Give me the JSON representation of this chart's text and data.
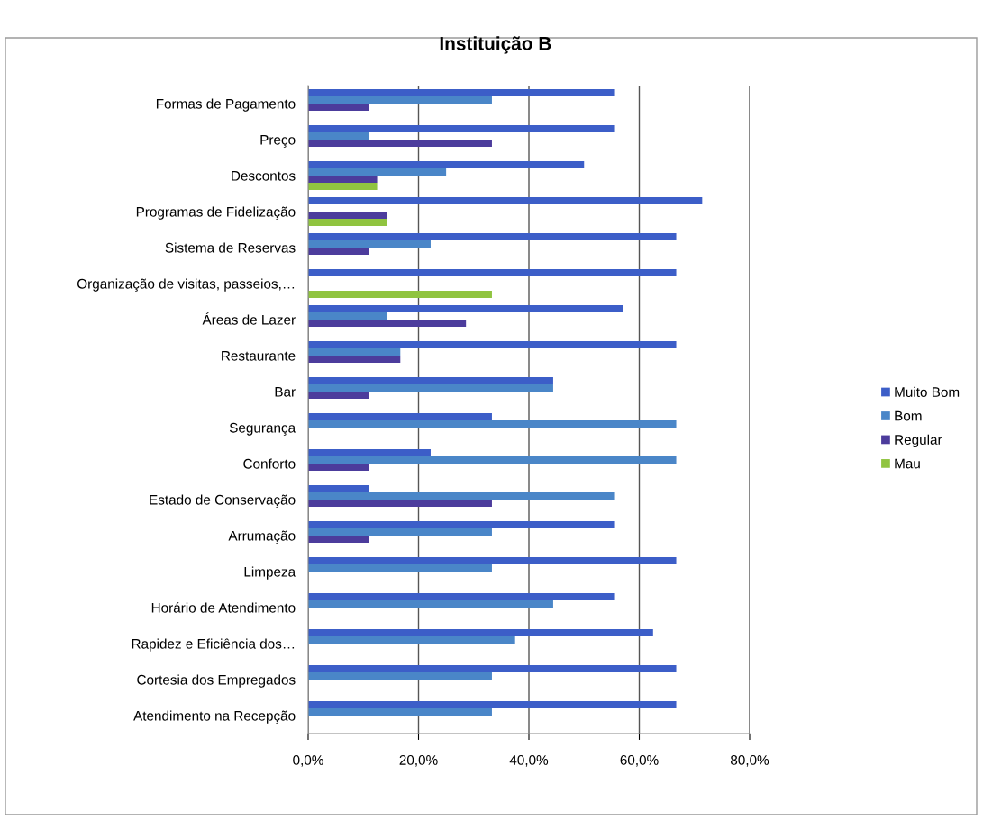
{
  "chart_data": {
    "type": "bar",
    "orientation": "horizontal",
    "title": "Instituição B",
    "categories": [
      "Formas de Pagamento",
      "Preço",
      "Descontos",
      "Programas de Fidelização",
      "Sistema de Reservas",
      "Organização de visitas, passeios,…",
      "Áreas de Lazer",
      "Restaurante",
      "Bar",
      "Segurança",
      "Conforto",
      "Estado de Conservação",
      "Arrumação",
      "Limpeza",
      "Horário de Atendimento",
      "Rapidez e Eficiência dos…",
      "Cortesia dos Empregados",
      "Atendimento na Recepção"
    ],
    "series": [
      {
        "name": "Muito Bom",
        "color": "#3c5ec8",
        "values": [
          55.6,
          55.6,
          50.0,
          71.4,
          66.7,
          66.7,
          57.1,
          66.7,
          44.4,
          33.3,
          22.2,
          11.1,
          55.6,
          66.7,
          55.6,
          62.5,
          66.7,
          66.7
        ]
      },
      {
        "name": "Bom",
        "color": "#4a86c8",
        "values": [
          33.3,
          11.1,
          25.0,
          null,
          22.2,
          null,
          14.3,
          16.7,
          44.4,
          66.7,
          66.7,
          55.6,
          33.3,
          33.3,
          44.4,
          37.5,
          33.3,
          33.3
        ]
      },
      {
        "name": "Regular",
        "color": "#4c3c9c",
        "values": [
          11.1,
          33.3,
          12.5,
          14.3,
          11.1,
          null,
          28.6,
          16.7,
          11.1,
          null,
          11.1,
          33.3,
          11.1,
          null,
          null,
          null,
          null,
          null
        ]
      },
      {
        "name": "Mau",
        "color": "#90c440",
        "values": [
          null,
          null,
          12.5,
          14.3,
          null,
          33.3,
          null,
          null,
          null,
          null,
          null,
          null,
          null,
          null,
          null,
          null,
          null,
          null
        ]
      }
    ],
    "xlim": [
      0,
      80
    ],
    "xticks": [
      {
        "value": 0,
        "label": "0,0%"
      },
      {
        "value": 20,
        "label": "20,0%"
      },
      {
        "value": 40,
        "label": "40,0%"
      },
      {
        "value": 60,
        "label": "60,0%"
      },
      {
        "value": 80,
        "label": "80,0%"
      }
    ],
    "grid": "x",
    "legend": "right"
  }
}
